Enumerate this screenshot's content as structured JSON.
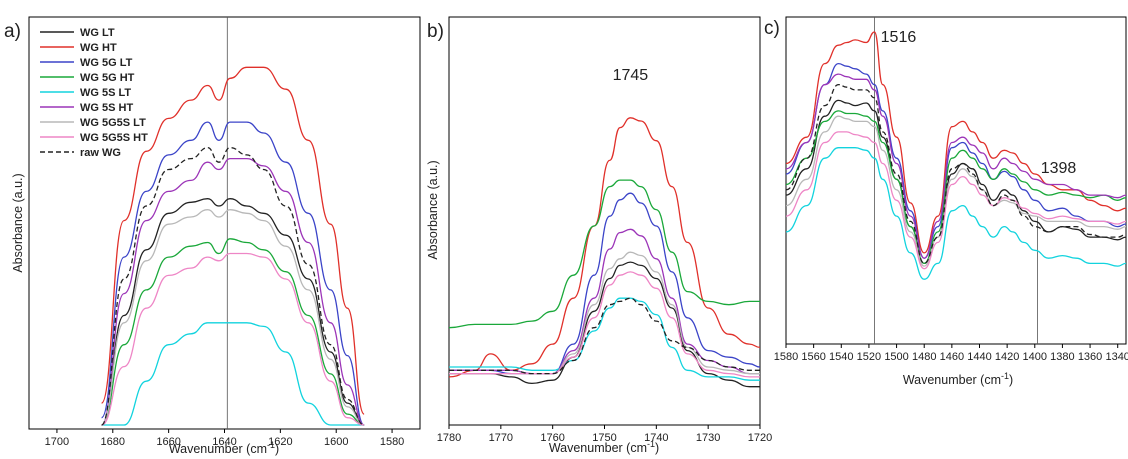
{
  "figure": {
    "panels": [
      {
        "letter": "a)",
        "xlabel": "Wavenumber (cm",
        "xlabel_sup": "-1",
        "xlabel_end": ")",
        "ylabel": "Absorbance (a.u.)"
      },
      {
        "letter": "b)",
        "xlabel": "Wavenumber (cm",
        "xlabel_sup": "-1",
        "xlabel_end": ")",
        "ylabel": "Absorbance (a.u.)"
      },
      {
        "letter": "c)",
        "xlabel": "Wavenumber (cm",
        "xlabel_sup": "-1",
        "xlabel_end": ")",
        "ylabel": ""
      }
    ]
  },
  "chart_data": [
    {
      "type": "line",
      "panel": "a)",
      "xlabel": "Wavenumber (cm-1)",
      "ylabel": "Absorbance (a.u.)",
      "xlim": [
        1710,
        1570
      ],
      "x_reversed": true,
      "xticks": [
        1700,
        1680,
        1660,
        1640,
        1620,
        1600,
        1580
      ],
      "ylim": [
        0,
        1
      ],
      "y_ticks_shown": false,
      "legend_position": "top-left",
      "vertical_line_at": 1639,
      "x": [
        1684,
        1676,
        1668,
        1660,
        1652,
        1646,
        1642,
        1638,
        1632,
        1626,
        1618,
        1610,
        1602,
        1596,
        1590
      ],
      "series": [
        {
          "name": "WG LT",
          "color": "#222222",
          "dash": false,
          "values": [
            0.0,
            0.3,
            0.48,
            0.58,
            0.61,
            0.62,
            0.6,
            0.62,
            0.6,
            0.58,
            0.52,
            0.4,
            0.2,
            0.06,
            0.0
          ]
        },
        {
          "name": "WG HT",
          "color": "#e0302a",
          "dash": false,
          "values": [
            0.06,
            0.56,
            0.75,
            0.84,
            0.89,
            0.93,
            0.89,
            0.95,
            0.98,
            0.98,
            0.92,
            0.78,
            0.55,
            0.32,
            0.03
          ]
        },
        {
          "name": "WG 5G LT",
          "color": "#3b44c8",
          "dash": false,
          "values": [
            0.02,
            0.46,
            0.64,
            0.74,
            0.78,
            0.83,
            0.78,
            0.83,
            0.83,
            0.8,
            0.72,
            0.58,
            0.37,
            0.19,
            0.0
          ]
        },
        {
          "name": "WG 5G HT",
          "color": "#1aa83a",
          "dash": false,
          "values": [
            0.0,
            0.22,
            0.37,
            0.46,
            0.49,
            0.5,
            0.47,
            0.51,
            0.5,
            0.48,
            0.42,
            0.3,
            0.14,
            0.03,
            0.0
          ]
        },
        {
          "name": "WG 5S LT",
          "color": "#12d3de",
          "dash": false,
          "values": [
            0.0,
            0.0,
            0.12,
            0.22,
            0.25,
            0.28,
            0.28,
            0.28,
            0.28,
            0.27,
            0.2,
            0.06,
            0.0,
            0.0,
            0.0
          ]
        },
        {
          "name": "WG 5S HT",
          "color": "#9c35b8",
          "dash": false,
          "values": [
            0.0,
            0.36,
            0.56,
            0.64,
            0.67,
            0.72,
            0.7,
            0.73,
            0.73,
            0.71,
            0.64,
            0.5,
            0.28,
            0.11,
            0.0
          ]
        },
        {
          "name": "WG 5G5S LT",
          "color": "#b8b8b8",
          "dash": false,
          "values": [
            0.0,
            0.28,
            0.45,
            0.55,
            0.57,
            0.59,
            0.57,
            0.59,
            0.58,
            0.56,
            0.49,
            0.37,
            0.18,
            0.05,
            0.0
          ]
        },
        {
          "name": "WG 5G5S HT",
          "color": "#ee86c6",
          "dash": false,
          "values": [
            0.0,
            0.16,
            0.32,
            0.41,
            0.43,
            0.46,
            0.45,
            0.47,
            0.47,
            0.46,
            0.4,
            0.28,
            0.12,
            0.02,
            0.0
          ]
        },
        {
          "name": "raw WG",
          "color": "#222222",
          "dash": true,
          "values": [
            0.0,
            0.4,
            0.6,
            0.7,
            0.73,
            0.76,
            0.72,
            0.76,
            0.74,
            0.7,
            0.6,
            0.44,
            0.22,
            0.07,
            0.0
          ]
        }
      ]
    },
    {
      "type": "line",
      "panel": "b)",
      "xlabel": "Wavenumber (cm-1)",
      "ylabel": "Absorbance (a.u.)",
      "xlim": [
        1780,
        1720
      ],
      "x_reversed": true,
      "xticks": [
        1780,
        1770,
        1760,
        1750,
        1740,
        1730,
        1720
      ],
      "ylim": [
        0,
        1
      ],
      "y_ticks_shown": false,
      "annotations": [
        {
          "text": "1745",
          "x": 1745
        }
      ],
      "x": [
        1780,
        1775,
        1772,
        1768,
        1764,
        1760,
        1756,
        1752,
        1749,
        1747,
        1745,
        1743,
        1740,
        1737,
        1734,
        1730,
        1726,
        1722,
        1720
      ],
      "series": [
        {
          "name": "WG LT",
          "color": "#222222",
          "dash": false,
          "values": [
            0.05,
            0.05,
            0.05,
            0.04,
            0.02,
            0.03,
            0.1,
            0.24,
            0.34,
            0.38,
            0.39,
            0.38,
            0.34,
            0.25,
            0.12,
            0.05,
            0.03,
            0.01,
            0.01
          ]
        },
        {
          "name": "WG HT",
          "color": "#e0302a",
          "dash": false,
          "values": [
            0.04,
            0.06,
            0.11,
            0.06,
            0.08,
            0.14,
            0.28,
            0.5,
            0.7,
            0.8,
            0.83,
            0.82,
            0.76,
            0.62,
            0.45,
            0.25,
            0.17,
            0.14,
            0.13
          ]
        },
        {
          "name": "WG 5G LT",
          "color": "#3b44c8",
          "dash": false,
          "values": [
            0.06,
            0.06,
            0.06,
            0.05,
            0.05,
            0.05,
            0.14,
            0.35,
            0.53,
            0.58,
            0.6,
            0.57,
            0.5,
            0.36,
            0.22,
            0.12,
            0.1,
            0.08,
            0.07
          ]
        },
        {
          "name": "WG 5G HT",
          "color": "#1aa83a",
          "dash": false,
          "values": [
            0.19,
            0.2,
            0.2,
            0.2,
            0.21,
            0.24,
            0.35,
            0.5,
            0.62,
            0.64,
            0.64,
            0.62,
            0.55,
            0.42,
            0.3,
            0.27,
            0.26,
            0.27,
            0.27
          ]
        },
        {
          "name": "WG 5S LT",
          "color": "#12d3de",
          "dash": false,
          "values": [
            0.07,
            0.07,
            0.07,
            0.07,
            0.06,
            0.06,
            0.09,
            0.18,
            0.25,
            0.28,
            0.28,
            0.27,
            0.23,
            0.13,
            0.06,
            0.04,
            0.04,
            0.03,
            0.03
          ]
        },
        {
          "name": "WG 5S HT",
          "color": "#9c35b8",
          "dash": false,
          "values": [
            0.06,
            0.06,
            0.06,
            0.06,
            0.05,
            0.05,
            0.12,
            0.28,
            0.43,
            0.48,
            0.49,
            0.47,
            0.4,
            0.28,
            0.14,
            0.09,
            0.07,
            0.05,
            0.05
          ]
        },
        {
          "name": "WG 5G5S LT",
          "color": "#b8b8b8",
          "dash": false,
          "values": [
            0.05,
            0.05,
            0.05,
            0.05,
            0.05,
            0.05,
            0.11,
            0.26,
            0.37,
            0.4,
            0.42,
            0.41,
            0.36,
            0.26,
            0.13,
            0.07,
            0.06,
            0.05,
            0.05
          ]
        },
        {
          "name": "WG 5G5S HT",
          "color": "#ee86c6",
          "dash": false,
          "values": [
            0.05,
            0.05,
            0.05,
            0.05,
            0.05,
            0.05,
            0.1,
            0.22,
            0.32,
            0.35,
            0.36,
            0.35,
            0.31,
            0.22,
            0.11,
            0.06,
            0.05,
            0.04,
            0.04
          ]
        },
        {
          "name": "raw WG",
          "color": "#222222",
          "dash": true,
          "values": [
            0.06,
            0.06,
            0.06,
            0.06,
            0.05,
            0.05,
            0.09,
            0.19,
            0.26,
            0.27,
            0.28,
            0.26,
            0.21,
            0.15,
            0.13,
            0.09,
            0.07,
            0.06,
            0.06
          ]
        }
      ]
    },
    {
      "type": "line",
      "panel": "c)",
      "xlabel": "Wavenumber (cm-1)",
      "xlim": [
        1580,
        1334
      ],
      "x_reversed": true,
      "xticks": [
        1580,
        1560,
        1540,
        1520,
        1500,
        1480,
        1460,
        1440,
        1420,
        1400,
        1380,
        1360,
        1340
      ],
      "ylim": [
        0,
        1
      ],
      "y_ticks_shown": false,
      "annotations": [
        {
          "text": "1516",
          "x": 1516
        },
        {
          "text": "1398",
          "x": 1398
        }
      ],
      "vertical_lines_at": [
        1516,
        1398
      ],
      "x": [
        1580,
        1565,
        1552,
        1542,
        1536,
        1530,
        1522,
        1516,
        1510,
        1500,
        1490,
        1480,
        1470,
        1460,
        1452,
        1445,
        1438,
        1430,
        1422,
        1416,
        1408,
        1400,
        1390,
        1380,
        1370,
        1360,
        1350,
        1340,
        1334
      ],
      "series": [
        {
          "name": "WG LT",
          "color": "#222222",
          "dash": false,
          "values": [
            0.38,
            0.48,
            0.68,
            0.74,
            0.73,
            0.72,
            0.73,
            0.7,
            0.6,
            0.44,
            0.26,
            0.12,
            0.22,
            0.46,
            0.5,
            0.48,
            0.42,
            0.36,
            0.4,
            0.38,
            0.32,
            0.28,
            0.24,
            0.26,
            0.25,
            0.22,
            0.22,
            0.21,
            0.22
          ]
        },
        {
          "name": "WG HT",
          "color": "#e0302a",
          "dash": false,
          "values": [
            0.5,
            0.6,
            0.88,
            0.95,
            0.96,
            0.97,
            0.96,
            1.0,
            0.8,
            0.6,
            0.35,
            0.16,
            0.3,
            0.64,
            0.66,
            0.62,
            0.58,
            0.52,
            0.55,
            0.54,
            0.5,
            0.46,
            0.42,
            0.4,
            0.4,
            0.36,
            0.34,
            0.32,
            0.33
          ]
        },
        {
          "name": "WG 5G LT",
          "color": "#3b44c8",
          "dash": false,
          "values": [
            0.46,
            0.58,
            0.8,
            0.88,
            0.87,
            0.86,
            0.84,
            0.8,
            0.7,
            0.52,
            0.32,
            0.14,
            0.26,
            0.56,
            0.58,
            0.54,
            0.5,
            0.44,
            0.47,
            0.45,
            0.4,
            0.36,
            0.32,
            0.33,
            0.3,
            0.28,
            0.28,
            0.26,
            0.27
          ]
        },
        {
          "name": "WG 5G HT",
          "color": "#1aa83a",
          "dash": false,
          "values": [
            0.42,
            0.52,
            0.66,
            0.7,
            0.69,
            0.69,
            0.68,
            0.66,
            0.58,
            0.44,
            0.26,
            0.12,
            0.24,
            0.52,
            0.55,
            0.52,
            0.48,
            0.44,
            0.48,
            0.46,
            0.43,
            0.4,
            0.38,
            0.39,
            0.38,
            0.37,
            0.38,
            0.36,
            0.37
          ]
        },
        {
          "name": "WG 5S LT",
          "color": "#12d3de",
          "dash": false,
          "values": [
            0.24,
            0.34,
            0.52,
            0.56,
            0.56,
            0.56,
            0.55,
            0.52,
            0.44,
            0.3,
            0.16,
            0.06,
            0.12,
            0.32,
            0.34,
            0.3,
            0.26,
            0.22,
            0.26,
            0.24,
            0.2,
            0.17,
            0.14,
            0.15,
            0.14,
            0.12,
            0.12,
            0.11,
            0.12
          ]
        },
        {
          "name": "WG 5S HT",
          "color": "#9c35b8",
          "dash": false,
          "values": [
            0.48,
            0.58,
            0.8,
            0.84,
            0.83,
            0.82,
            0.82,
            0.78,
            0.68,
            0.5,
            0.3,
            0.14,
            0.28,
            0.58,
            0.6,
            0.57,
            0.54,
            0.48,
            0.52,
            0.5,
            0.47,
            0.44,
            0.42,
            0.42,
            0.4,
            0.38,
            0.38,
            0.37,
            0.38
          ]
        },
        {
          "name": "WG 5G5S LT",
          "color": "#b8b8b8",
          "dash": false,
          "values": [
            0.34,
            0.44,
            0.62,
            0.68,
            0.67,
            0.66,
            0.66,
            0.64,
            0.55,
            0.4,
            0.24,
            0.11,
            0.22,
            0.44,
            0.48,
            0.45,
            0.4,
            0.34,
            0.36,
            0.35,
            0.31,
            0.3,
            0.28,
            0.28,
            0.28,
            0.26,
            0.26,
            0.25,
            0.26
          ]
        },
        {
          "name": "WG 5G5S HT",
          "color": "#ee86c6",
          "dash": false,
          "values": [
            0.3,
            0.4,
            0.58,
            0.62,
            0.62,
            0.61,
            0.6,
            0.58,
            0.5,
            0.36,
            0.22,
            0.1,
            0.2,
            0.42,
            0.45,
            0.42,
            0.38,
            0.34,
            0.37,
            0.36,
            0.33,
            0.31,
            0.29,
            0.3,
            0.29,
            0.28,
            0.28,
            0.27,
            0.28
          ]
        },
        {
          "name": "raw WG",
          "color": "#222222",
          "dash": true,
          "values": [
            0.4,
            0.52,
            0.72,
            0.8,
            0.79,
            0.78,
            0.78,
            0.75,
            0.62,
            0.46,
            0.28,
            0.12,
            0.22,
            0.48,
            0.5,
            0.46,
            0.4,
            0.34,
            0.38,
            0.36,
            0.3,
            0.26,
            0.24,
            0.26,
            0.26,
            0.23,
            0.22,
            0.22,
            0.23
          ]
        }
      ]
    }
  ]
}
